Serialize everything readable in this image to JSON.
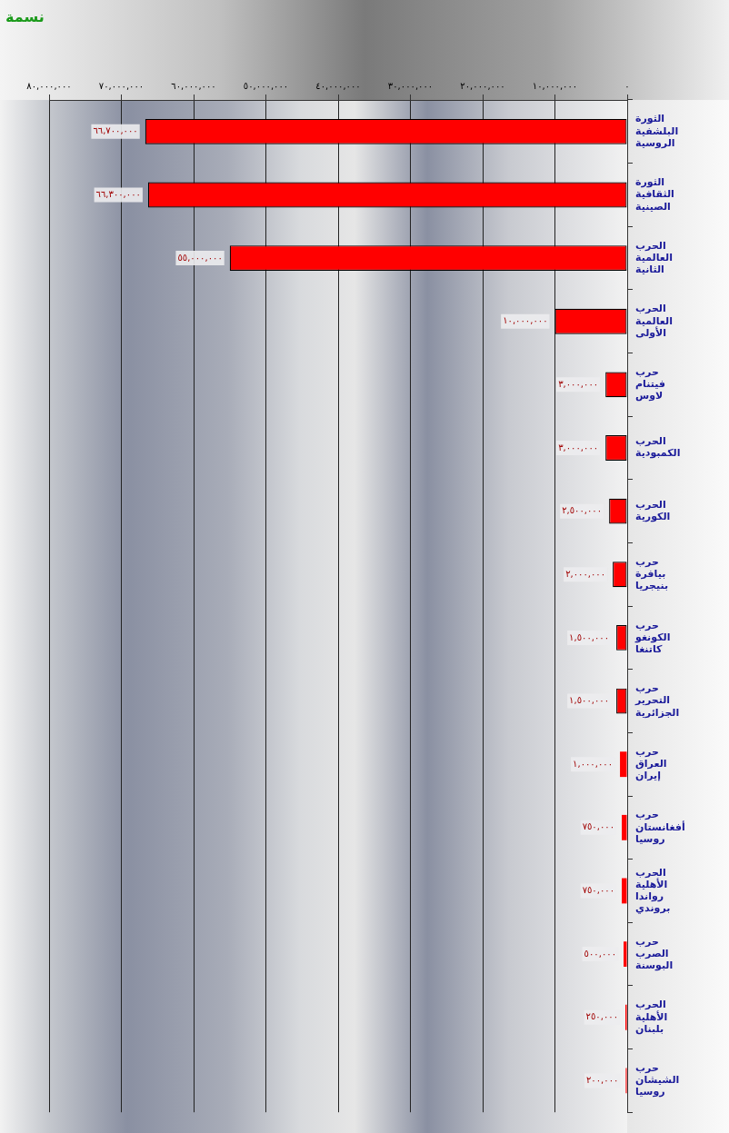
{
  "chart_data": {
    "type": "bar",
    "orientation": "horizontal",
    "xlabel": "نسمة",
    "categories": [
      "الثورة البلشفية الروسية",
      "الثورة الثقافية الصينية",
      "الحرب العالمية الثانية",
      "الحرب العالمية الأولى",
      "حرب فيتنام لاوس",
      "الحرب الكمبودية",
      "الحرب الكورية",
      "حرب بيافرة بنيجريا",
      "حرب الكونغو كاتنغا",
      "حرب التحرير الجزائرية",
      "حرب العراق إيران",
      "حرب أفغانستان روسيا",
      "الحرب الأهلية رواندا بروندي",
      "حرب الصرب البوسنة",
      "الحرب الأهلية بلبنان",
      "حرب الشيشان روسيا"
    ],
    "values": [
      66700000,
      66300000,
      55000000,
      10000000,
      3000000,
      3000000,
      2500000,
      2000000,
      1500000,
      1500000,
      1000000,
      750000,
      750000,
      500000,
      250000,
      200000
    ],
    "value_labels": [
      "٦٦,٧٠٠,٠٠٠",
      "٦٦,٣٠٠,٠٠٠",
      "٥٥,٠٠٠,٠٠٠",
      "١٠,٠٠٠,٠٠٠",
      "٣,٠٠٠,٠٠٠",
      "٣,٠٠٠,٠٠٠",
      "٢,٥٠٠,٠٠٠",
      "٢,٠٠٠,٠٠٠",
      "١,٥٠٠,٠٠٠",
      "١,٥٠٠,٠٠٠",
      "١,٠٠٠,٠٠٠",
      "٧٥٠,٠٠٠",
      "٧٥٠,٠٠٠",
      "٥٠٠,٠٠٠",
      "٢٥٠,٠٠٠",
      "٢٠٠,٠٠٠"
    ],
    "color": "#ff0000",
    "xlim": [
      80000000,
      0
    ],
    "xticks": [
      {
        "value": 80000000,
        "label": "٨٠,٠٠٠,٠٠٠"
      },
      {
        "value": 70000000,
        "label": "٧٠,٠٠٠,٠٠٠"
      },
      {
        "value": 60000000,
        "label": "٦٠,٠٠٠,٠٠٠"
      },
      {
        "value": 50000000,
        "label": "٥٠,٠٠٠,٠٠٠"
      },
      {
        "value": 40000000,
        "label": "٤٠,٠٠٠,٠٠٠"
      },
      {
        "value": 30000000,
        "label": "٣٠,٠٠٠,٠٠٠"
      },
      {
        "value": 20000000,
        "label": "٢٠,٠٠٠,٠٠٠"
      },
      {
        "value": 10000000,
        "label": "١٠,٠٠٠,٠٠٠"
      },
      {
        "value": 0,
        "label": "٠"
      }
    ],
    "grid": "x"
  }
}
